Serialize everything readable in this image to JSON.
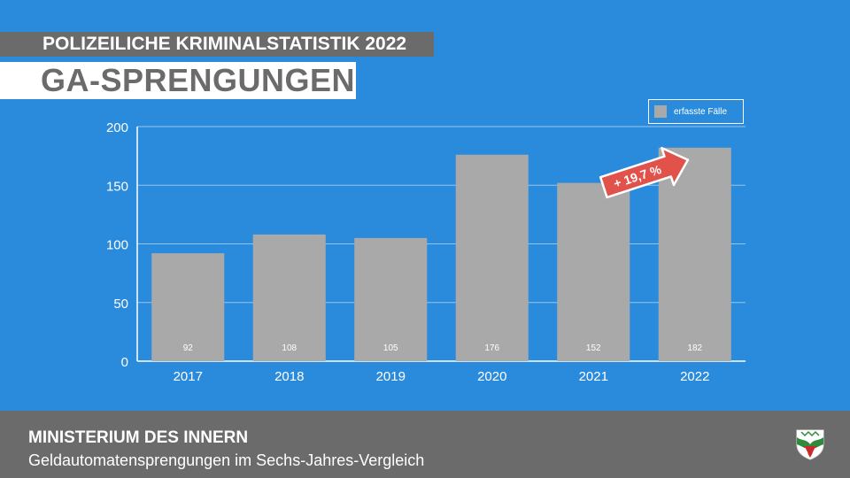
{
  "header": {
    "kicker": "POLIZEILICHE KRIMINALSTATISTIK 2022",
    "title": "GA-SPRENGUNGEN"
  },
  "legend": {
    "label": "erfasste Fälle"
  },
  "annotation": {
    "label": "+ 19,7 %"
  },
  "footer": {
    "title": "MINISTERIUM DES INNERN",
    "subtitle": "Geldautomatensprengungen im Sechs-Jahres-Vergleich"
  },
  "logo": {
    "icon": "nrw-crest-icon"
  },
  "colors": {
    "background": "#2a8bdd",
    "bar": "#a9a9a9",
    "band": "#6b6b6b",
    "arrow": "#e0524a"
  },
  "chart_data": {
    "type": "bar",
    "categories": [
      "2017",
      "2018",
      "2019",
      "2020",
      "2021",
      "2022"
    ],
    "values": [
      92,
      108,
      105,
      176,
      152,
      182
    ],
    "series_name": "erfasste Fälle",
    "yticks": [
      "0",
      "50",
      "100",
      "150",
      "200"
    ],
    "ylim": [
      0,
      200
    ],
    "grid": true,
    "legend_position": "top-right",
    "annotations": [
      {
        "text": "+ 19,7 %",
        "from": "2021",
        "to": "2022"
      }
    ]
  }
}
